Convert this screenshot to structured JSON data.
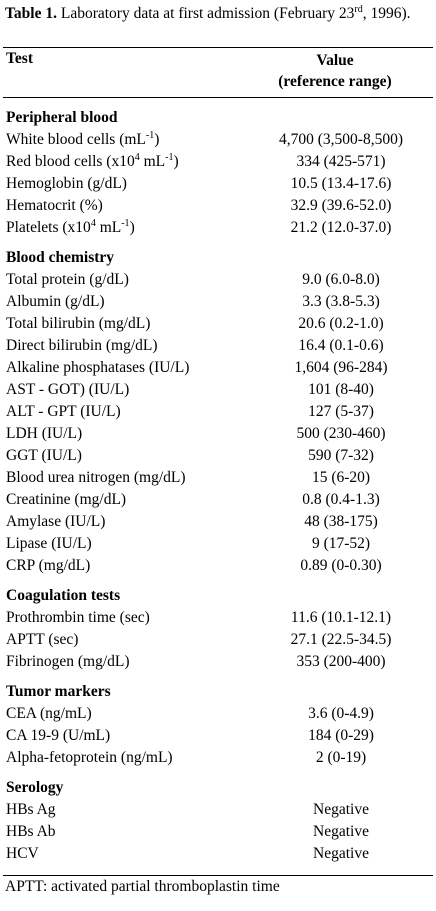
{
  "title": {
    "label": "Table 1.",
    "text": [
      "Laboratory data at first admission (February 23",
      "rd",
      ", 1996)."
    ]
  },
  "header": {
    "test": "Test",
    "value": [
      "Value",
      "(reference range)"
    ]
  },
  "sections": [
    {
      "name": "Peripheral blood",
      "rows": [
        {
          "test": [
            "White blood cells (mL",
            "-1",
            ")"
          ],
          "value": "4,700 (3,500-8,500)"
        },
        {
          "test": [
            "Red blood cells (x10",
            "4",
            " mL",
            "-1",
            ")"
          ],
          "value": "334 (425-571)"
        },
        {
          "test": "Hemoglobin (g/dL)",
          "value": "10.5 (13.4-17.6)"
        },
        {
          "test": "Hematocrit (%)",
          "value": "32.9 (39.6-52.0)"
        },
        {
          "test": [
            "Platelets (x10",
            "4",
            " mL",
            "-1",
            ")"
          ],
          "value": "21.2 (12.0-37.0)"
        }
      ]
    },
    {
      "name": "Blood chemistry",
      "rows": [
        {
          "test": "Total protein (g/dL)",
          "value": "9.0 (6.0-8.0)"
        },
        {
          "test": "Albumin (g/dL)",
          "value": "3.3 (3.8-5.3)"
        },
        {
          "test": "Total bilirubin (mg/dL)",
          "value": "20.6 (0.2-1.0)"
        },
        {
          "test": "Direct bilirubin (mg/dL)",
          "value": "16.4 (0.1-0.6)"
        },
        {
          "test": "Alkaline phosphatases (IU/L)",
          "value": "1,604 (96-284)"
        },
        {
          "test": "AST - GOT) (IU/L)",
          "value": "101 (8-40)"
        },
        {
          "test": "ALT - GPT (IU/L)",
          "value": "127 (5-37)"
        },
        {
          "test": "LDH (IU/L)",
          "value": "500 (230-460)"
        },
        {
          "test": "GGT (IU/L)",
          "value": "590 (7-32)"
        },
        {
          "test": "Blood urea nitrogen (mg/dL)",
          "value": "15 (6-20)"
        },
        {
          "test": "Creatinine (mg/dL)",
          "value": "0.8 (0.4-1.3)"
        },
        {
          "test": "Amylase (IU/L)",
          "value": "48 (38-175)"
        },
        {
          "test": "Lipase (IU/L)",
          "value": "9 (17-52)"
        },
        {
          "test": "CRP (mg/dL)",
          "value": "0.89 (0-0.30)"
        }
      ]
    },
    {
      "name": "Coagulation tests",
      "rows": [
        {
          "test": "Prothrombin time (sec)",
          "value": "11.6 (10.1-12.1)"
        },
        {
          "test": "APTT (sec)",
          "value": "27.1 (22.5-34.5)"
        },
        {
          "test": "Fibrinogen (mg/dL)",
          "value": "353 (200-400)"
        }
      ]
    },
    {
      "name": "Tumor markers",
      "rows": [
        {
          "test": "CEA (ng/mL)",
          "value": "3.6 (0-4.9)"
        },
        {
          "test": "CA 19-9 (U/mL)",
          "value": "184 (0-29)"
        },
        {
          "test": "Alpha-fetoprotein (ng/mL)",
          "value": "2 (0-19)"
        }
      ]
    },
    {
      "name": "Serology",
      "rows": [
        {
          "test": "HBs Ag",
          "value": "Negative"
        },
        {
          "test": "HBs Ab",
          "value": "Negative"
        },
        {
          "test": "HCV",
          "value": "Negative"
        }
      ]
    }
  ],
  "footnote": "APTT: activated partial thromboplastin time"
}
